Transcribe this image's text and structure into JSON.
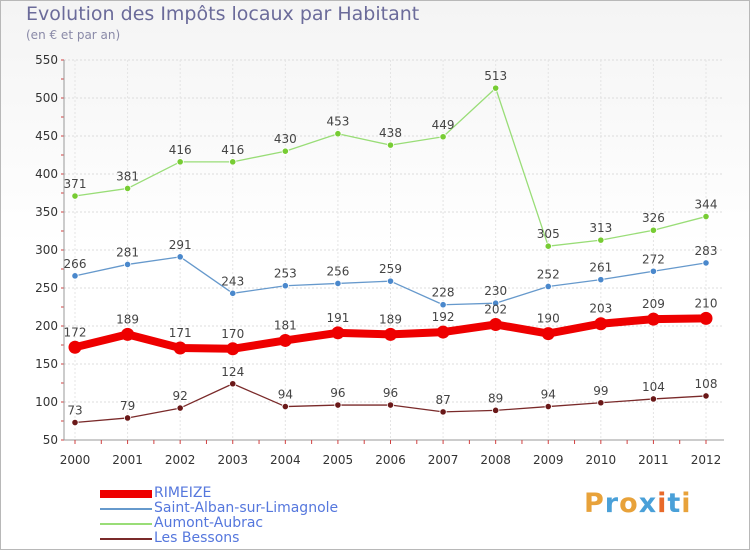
{
  "title": "Evolution des Impôts locaux par Habitant",
  "subtitle": "(en € et par an)",
  "logo": {
    "letters": [
      "P",
      "r",
      "o",
      "x",
      "i",
      "t",
      "i"
    ],
    "colors": [
      "#e8a23a",
      "#4aa0d8",
      "#e8a23a",
      "#4aa0d8",
      "#e86a2a",
      "#4aa0d8",
      "#e8a23a"
    ]
  },
  "chart_data": {
    "type": "line",
    "x": [
      "2000",
      "2001",
      "2002",
      "2003",
      "2004",
      "2005",
      "2006",
      "2007",
      "2008",
      "2009",
      "2010",
      "2011",
      "2012"
    ],
    "ylim": [
      50,
      550
    ],
    "yticks": [
      50,
      100,
      150,
      200,
      250,
      300,
      350,
      400,
      450,
      500,
      550
    ],
    "grid": true,
    "legend_position": "bottom-left",
    "series": [
      {
        "name": "RIMEIZE",
        "color": "#ee0000",
        "width": 8,
        "marker_color": "#ee0000",
        "values": [
          172,
          189,
          171,
          170,
          181,
          191,
          189,
          192,
          202,
          190,
          203,
          209,
          210
        ]
      },
      {
        "name": "Saint-Alban-sur-Limagnole",
        "color": "#6699cc",
        "width": 1.3,
        "marker_color": "#4a88cc",
        "values": [
          266,
          281,
          291,
          243,
          253,
          256,
          259,
          228,
          230,
          252,
          261,
          272,
          283
        ]
      },
      {
        "name": "Aumont-Aubrac",
        "color": "#99dd77",
        "width": 1.3,
        "marker_color": "#77cc33",
        "values": [
          371,
          381,
          416,
          416,
          430,
          453,
          438,
          449,
          513,
          305,
          313,
          326,
          344
        ]
      },
      {
        "name": "Les Bessons",
        "color": "#7a2a2a",
        "width": 1.3,
        "marker_color": "#6a1818",
        "values": [
          73,
          79,
          92,
          124,
          94,
          96,
          96,
          87,
          89,
          94,
          99,
          104,
          108
        ]
      }
    ]
  }
}
